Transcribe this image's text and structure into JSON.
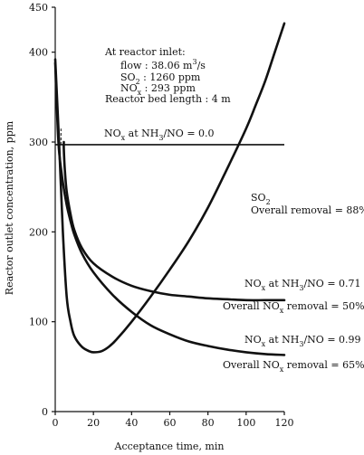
{
  "chart_data": {
    "type": "line",
    "xlabel": "Acceptance time, min",
    "ylabel": "Reactor outlet concentration, ppm",
    "xlim": [
      0,
      120
    ],
    "ylim": [
      0,
      450
    ],
    "xticks": [
      0,
      20,
      40,
      60,
      80,
      100,
      120
    ],
    "yticks": [
      0,
      100,
      200,
      300,
      400,
      450
    ],
    "inlet_note": {
      "title": "At reactor inlet:",
      "flow_label": "flow : 38.06 m",
      "flow_sup": "3",
      "flow_unit": "/s",
      "so2_label": "SO",
      "so2_sub": "2",
      "so2_value": " : 1260 ppm",
      "nox_label": "NO",
      "nox_sub": "x",
      "nox_value": " : 293 ppm",
      "bed_length": "Reactor bed length : 4 m"
    },
    "series": [
      {
        "id": "nox_00",
        "label_main": "NO",
        "label_sub": "x",
        "label_rest": " at NH",
        "label_sub2": "3",
        "label_tail": "/NO = 0.0",
        "x": [
          0,
          120
        ],
        "y": [
          297,
          297
        ]
      },
      {
        "id": "so2",
        "label_main": "SO",
        "label_sub": "2",
        "removal": "Overall removal = 88%",
        "x": [
          0,
          2,
          4,
          6,
          8,
          10,
          14,
          18,
          20,
          24,
          28,
          32,
          40,
          50,
          60,
          70,
          80,
          90,
          100,
          105,
          110,
          115,
          120
        ],
        "y": [
          392,
          300,
          200,
          128,
          100,
          84,
          72,
          67,
          66,
          67,
          72,
          80,
          100,
          128,
          158,
          190,
          227,
          270,
          315,
          341,
          368,
          400,
          432
        ]
      },
      {
        "id": "nox_071",
        "label_main": "NO",
        "label_sub": "x",
        "label_rest": " at NH",
        "label_sub2": "3",
        "label_tail": "/NO = 0.71",
        "removal_pre": "Overall NO",
        "removal_sub": "x",
        "removal_post": " removal = 50%",
        "x": [
          4.5,
          4.5,
          5,
          6,
          8,
          10,
          14,
          20,
          30,
          40,
          50,
          60,
          70,
          80,
          90,
          100,
          110,
          120
        ],
        "y": [
          300,
          292,
          270,
          245,
          220,
          202,
          182,
          165,
          150,
          140,
          134,
          130,
          128,
          126,
          125,
          124,
          124,
          124
        ]
      },
      {
        "id": "nox_099",
        "label_main": "NO",
        "label_sub": "x",
        "label_rest": " at NH",
        "label_sub2": "3",
        "label_tail": "/NO = 0.99",
        "removal_pre": "Overall NO",
        "removal_sub": "x",
        "removal_post": " removal = 65%",
        "x": [
          0,
          1,
          2,
          4,
          6,
          8,
          10,
          14,
          20,
          30,
          40,
          50,
          60,
          70,
          80,
          90,
          100,
          110,
          120
        ],
        "y": [
          388,
          330,
          290,
          255,
          230,
          212,
          197,
          176,
          155,
          130,
          111,
          96,
          86,
          78,
          73,
          69,
          66,
          64,
          63
        ]
      }
    ],
    "dashed_marker": {
      "x": 3,
      "y_from": 297,
      "y_to": 315
    }
  }
}
